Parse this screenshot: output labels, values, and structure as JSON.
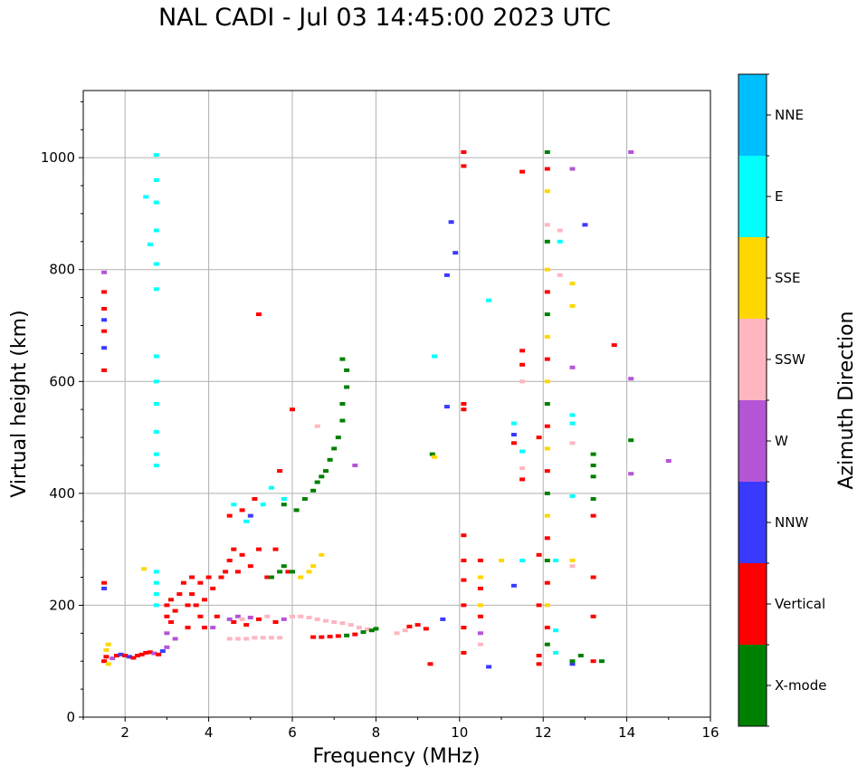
{
  "chart_data": {
    "type": "scatter",
    "title": "NAL CADI - Jul 03 14:45:00 2023 UTC",
    "xlabel": "Frequency (MHz)",
    "ylabel": "Virtual height (km)",
    "xlim": [
      1,
      16
    ],
    "ylim": [
      0,
      1120
    ],
    "xticks": [
      2,
      4,
      6,
      8,
      10,
      12,
      14,
      16
    ],
    "yticks": [
      0,
      200,
      400,
      600,
      800,
      1000
    ],
    "grid": true,
    "colorbar": {
      "label": "Azimuth Direction",
      "categories": [
        {
          "name": "X-mode",
          "color": "#008000"
        },
        {
          "name": "Vertical",
          "color": "#ff0000"
        },
        {
          "name": "NNW",
          "color": "#3a3aff"
        },
        {
          "name": "W",
          "color": "#b555d6"
        },
        {
          "name": "SSW",
          "color": "#ffb6c1"
        },
        {
          "name": "SSE",
          "color": "#ffd700"
        },
        {
          "name": "E",
          "color": "#00ffff"
        },
        {
          "name": "NNE",
          "color": "#00bfff"
        }
      ]
    },
    "points": [
      [
        1.5,
        100,
        "Vertical"
      ],
      [
        1.55,
        108,
        "Vertical"
      ],
      [
        1.6,
        95,
        "SSE"
      ],
      [
        1.55,
        120,
        "SSE"
      ],
      [
        1.6,
        130,
        "SSE"
      ],
      [
        1.7,
        105,
        "W"
      ],
      [
        1.8,
        110,
        "Vertical"
      ],
      [
        1.9,
        112,
        "NNW"
      ],
      [
        2.0,
        110,
        "Vertical"
      ],
      [
        2.1,
        108,
        "NNW"
      ],
      [
        2.2,
        106,
        "Vertical"
      ],
      [
        2.3,
        110,
        "Vertical"
      ],
      [
        2.4,
        112,
        "Vertical"
      ],
      [
        2.5,
        115,
        "Vertical"
      ],
      [
        2.6,
        116,
        "Vertical"
      ],
      [
        2.7,
        114,
        "W"
      ],
      [
        2.8,
        112,
        "Vertical"
      ],
      [
        2.9,
        118,
        "NNW"
      ],
      [
        3.0,
        125,
        "W"
      ],
      [
        1.5,
        230,
        "NNW"
      ],
      [
        1.5,
        240,
        "Vertical"
      ],
      [
        1.5,
        620,
        "Vertical"
      ],
      [
        1.5,
        660,
        "NNW"
      ],
      [
        1.5,
        690,
        "Vertical"
      ],
      [
        1.5,
        710,
        "NNW"
      ],
      [
        1.5,
        730,
        "Vertical"
      ],
      [
        1.5,
        760,
        "Vertical"
      ],
      [
        1.5,
        795,
        "W"
      ],
      [
        2.45,
        265,
        "SSE"
      ],
      [
        2.5,
        930,
        "E"
      ],
      [
        2.6,
        845,
        "E"
      ],
      [
        2.75,
        1005,
        "E"
      ],
      [
        2.75,
        960,
        "E"
      ],
      [
        2.75,
        920,
        "E"
      ],
      [
        2.75,
        870,
        "E"
      ],
      [
        2.75,
        810,
        "E"
      ],
      [
        2.75,
        765,
        "E"
      ],
      [
        2.75,
        645,
        "E"
      ],
      [
        2.75,
        600,
        "E"
      ],
      [
        2.75,
        560,
        "E"
      ],
      [
        2.75,
        510,
        "E"
      ],
      [
        2.75,
        470,
        "E"
      ],
      [
        2.75,
        450,
        "E"
      ],
      [
        2.75,
        260,
        "E"
      ],
      [
        2.75,
        240,
        "E"
      ],
      [
        2.75,
        220,
        "E"
      ],
      [
        2.75,
        200,
        "E"
      ],
      [
        3.0,
        150,
        "W"
      ],
      [
        3.0,
        180,
        "Vertical"
      ],
      [
        3.0,
        200,
        "Vertical"
      ],
      [
        3.1,
        210,
        "Vertical"
      ],
      [
        3.1,
        170,
        "Vertical"
      ],
      [
        3.2,
        140,
        "W"
      ],
      [
        3.2,
        190,
        "Vertical"
      ],
      [
        3.3,
        220,
        "Vertical"
      ],
      [
        3.4,
        240,
        "Vertical"
      ],
      [
        3.5,
        200,
        "Vertical"
      ],
      [
        3.5,
        160,
        "Vertical"
      ],
      [
        3.6,
        220,
        "Vertical"
      ],
      [
        3.6,
        250,
        "Vertical"
      ],
      [
        3.7,
        200,
        "Vertical"
      ],
      [
        3.8,
        240,
        "Vertical"
      ],
      [
        3.8,
        180,
        "Vertical"
      ],
      [
        3.9,
        210,
        "Vertical"
      ],
      [
        3.9,
        160,
        "Vertical"
      ],
      [
        4.0,
        250,
        "Vertical"
      ],
      [
        4.1,
        230,
        "Vertical"
      ],
      [
        4.1,
        160,
        "W"
      ],
      [
        4.2,
        180,
        "Vertical"
      ],
      [
        4.3,
        250,
        "Vertical"
      ],
      [
        4.4,
        260,
        "Vertical"
      ],
      [
        4.5,
        280,
        "Vertical"
      ],
      [
        4.5,
        360,
        "Vertical"
      ],
      [
        4.6,
        380,
        "E"
      ],
      [
        4.6,
        300,
        "Vertical"
      ],
      [
        4.7,
        260,
        "Vertical"
      ],
      [
        4.8,
        370,
        "Vertical"
      ],
      [
        4.8,
        290,
        "Vertical"
      ],
      [
        4.9,
        350,
        "E"
      ],
      [
        5.0,
        360,
        "NNW"
      ],
      [
        5.0,
        270,
        "Vertical"
      ],
      [
        5.1,
        390,
        "Vertical"
      ],
      [
        5.2,
        300,
        "Vertical"
      ],
      [
        5.3,
        380,
        "E"
      ],
      [
        5.4,
        250,
        "Vertical"
      ],
      [
        5.5,
        410,
        "E"
      ],
      [
        5.6,
        300,
        "Vertical"
      ],
      [
        5.7,
        440,
        "Vertical"
      ],
      [
        5.8,
        390,
        "E"
      ],
      [
        5.9,
        260,
        "Vertical"
      ],
      [
        4.5,
        175,
        "W"
      ],
      [
        4.6,
        170,
        "Vertical"
      ],
      [
        4.7,
        180,
        "W"
      ],
      [
        4.8,
        175,
        "SSW"
      ],
      [
        4.9,
        165,
        "Vertical"
      ],
      [
        5.0,
        178,
        "W"
      ],
      [
        5.2,
        175,
        "Vertical"
      ],
      [
        5.4,
        180,
        "SSW"
      ],
      [
        5.6,
        170,
        "Vertical"
      ],
      [
        5.8,
        175,
        "W"
      ],
      [
        6.0,
        180,
        "SSW"
      ],
      [
        6.2,
        180,
        "SSW"
      ],
      [
        6.4,
        178,
        "SSW"
      ],
      [
        6.6,
        175,
        "SSW"
      ],
      [
        6.8,
        172,
        "SSW"
      ],
      [
        7.0,
        170,
        "SSW"
      ],
      [
        7.2,
        168,
        "SSW"
      ],
      [
        7.4,
        165,
        "SSW"
      ],
      [
        7.6,
        160,
        "SSW"
      ],
      [
        7.8,
        157,
        "SSW"
      ],
      [
        4.5,
        140,
        "SSW"
      ],
      [
        4.7,
        140,
        "SSW"
      ],
      [
        4.9,
        140,
        "SSW"
      ],
      [
        5.1,
        142,
        "SSW"
      ],
      [
        5.3,
        142,
        "SSW"
      ],
      [
        5.5,
        142,
        "SSW"
      ],
      [
        5.7,
        142,
        "SSW"
      ],
      [
        6.5,
        143,
        "Vertical"
      ],
      [
        6.7,
        143,
        "Vertical"
      ],
      [
        6.9,
        144,
        "Vertical"
      ],
      [
        7.1,
        145,
        "Vertical"
      ],
      [
        7.3,
        146,
        "X-mode"
      ],
      [
        7.5,
        148,
        "Vertical"
      ],
      [
        7.7,
        152,
        "X-mode"
      ],
      [
        7.9,
        155,
        "X-mode"
      ],
      [
        8.0,
        158,
        "X-mode"
      ],
      [
        8.5,
        150,
        "SSW"
      ],
      [
        8.7,
        155,
        "SSW"
      ],
      [
        8.8,
        162,
        "Vertical"
      ],
      [
        9.0,
        165,
        "Vertical"
      ],
      [
        9.2,
        158,
        "Vertical"
      ],
      [
        5.5,
        250,
        "X-mode"
      ],
      [
        5.7,
        260,
        "X-mode"
      ],
      [
        5.8,
        270,
        "X-mode"
      ],
      [
        6.0,
        260,
        "X-mode"
      ],
      [
        6.2,
        250,
        "SSE"
      ],
      [
        6.4,
        260,
        "SSE"
      ],
      [
        6.5,
        270,
        "SSE"
      ],
      [
        6.7,
        290,
        "SSE"
      ],
      [
        5.2,
        720,
        "Vertical"
      ],
      [
        5.8,
        380,
        "X-mode"
      ],
      [
        6.1,
        370,
        "X-mode"
      ],
      [
        6.3,
        390,
        "X-mode"
      ],
      [
        6.5,
        405,
        "X-mode"
      ],
      [
        6.6,
        420,
        "X-mode"
      ],
      [
        6.7,
        430,
        "X-mode"
      ],
      [
        6.8,
        440,
        "X-mode"
      ],
      [
        6.9,
        460,
        "X-mode"
      ],
      [
        7.0,
        480,
        "X-mode"
      ],
      [
        7.1,
        500,
        "X-mode"
      ],
      [
        7.2,
        530,
        "X-mode"
      ],
      [
        7.2,
        560,
        "X-mode"
      ],
      [
        7.3,
        590,
        "X-mode"
      ],
      [
        7.3,
        620,
        "X-mode"
      ],
      [
        7.2,
        640,
        "X-mode"
      ],
      [
        6.0,
        550,
        "Vertical"
      ],
      [
        6.6,
        520,
        "SSW"
      ],
      [
        7.5,
        450,
        "W"
      ],
      [
        9.3,
        95,
        "Vertical"
      ],
      [
        9.35,
        470,
        "X-mode"
      ],
      [
        9.4,
        465,
        "SSE"
      ],
      [
        9.4,
        645,
        "E"
      ],
      [
        9.7,
        790,
        "NNW"
      ],
      [
        9.7,
        555,
        "NNW"
      ],
      [
        9.8,
        885,
        "NNW"
      ],
      [
        9.9,
        830,
        "NNW"
      ],
      [
        9.6,
        175,
        "NNW"
      ],
      [
        10.1,
        1010,
        "Vertical"
      ],
      [
        10.1,
        985,
        "Vertical"
      ],
      [
        10.1,
        560,
        "Vertical"
      ],
      [
        10.1,
        550,
        "Vertical"
      ],
      [
        10.1,
        325,
        "Vertical"
      ],
      [
        10.1,
        280,
        "Vertical"
      ],
      [
        10.1,
        245,
        "Vertical"
      ],
      [
        10.1,
        200,
        "Vertical"
      ],
      [
        10.1,
        160,
        "Vertical"
      ],
      [
        10.1,
        115,
        "Vertical"
      ],
      [
        10.5,
        280,
        "Vertical"
      ],
      [
        10.5,
        250,
        "SSE"
      ],
      [
        10.5,
        230,
        "Vertical"
      ],
      [
        10.5,
        200,
        "SSE"
      ],
      [
        10.5,
        180,
        "Vertical"
      ],
      [
        10.5,
        150,
        "W"
      ],
      [
        10.5,
        130,
        "SSW"
      ],
      [
        10.7,
        90,
        "NNW"
      ],
      [
        10.7,
        745,
        "E"
      ],
      [
        11.0,
        280,
        "SSE"
      ],
      [
        11.3,
        525,
        "E"
      ],
      [
        11.3,
        505,
        "NNW"
      ],
      [
        11.3,
        490,
        "Vertical"
      ],
      [
        11.3,
        235,
        "NNW"
      ],
      [
        11.5,
        975,
        "Vertical"
      ],
      [
        11.5,
        655,
        "Vertical"
      ],
      [
        11.5,
        630,
        "Vertical"
      ],
      [
        11.5,
        600,
        "SSW"
      ],
      [
        11.5,
        475,
        "E"
      ],
      [
        11.5,
        445,
        "SSW"
      ],
      [
        11.5,
        425,
        "Vertical"
      ],
      [
        11.5,
        280,
        "E"
      ],
      [
        11.9,
        500,
        "Vertical"
      ],
      [
        11.9,
        290,
        "Vertical"
      ],
      [
        11.9,
        200,
        "Vertical"
      ],
      [
        11.9,
        110,
        "Vertical"
      ],
      [
        11.9,
        95,
        "Vertical"
      ],
      [
        12.1,
        1010,
        "X-mode"
      ],
      [
        12.1,
        980,
        "Vertical"
      ],
      [
        12.1,
        940,
        "SSE"
      ],
      [
        12.1,
        880,
        "SSW"
      ],
      [
        12.1,
        850,
        "X-mode"
      ],
      [
        12.1,
        800,
        "SSE"
      ],
      [
        12.1,
        760,
        "Vertical"
      ],
      [
        12.1,
        720,
        "X-mode"
      ],
      [
        12.1,
        680,
        "SSE"
      ],
      [
        12.1,
        640,
        "Vertical"
      ],
      [
        12.1,
        600,
        "SSE"
      ],
      [
        12.1,
        560,
        "X-mode"
      ],
      [
        12.1,
        520,
        "Vertical"
      ],
      [
        12.1,
        480,
        "SSE"
      ],
      [
        12.1,
        440,
        "Vertical"
      ],
      [
        12.1,
        400,
        "X-mode"
      ],
      [
        12.1,
        360,
        "SSE"
      ],
      [
        12.1,
        320,
        "Vertical"
      ],
      [
        12.1,
        280,
        "X-mode"
      ],
      [
        12.1,
        240,
        "Vertical"
      ],
      [
        12.1,
        200,
        "SSE"
      ],
      [
        12.1,
        160,
        "Vertical"
      ],
      [
        12.1,
        130,
        "X-mode"
      ],
      [
        12.4,
        870,
        "SSW"
      ],
      [
        12.4,
        790,
        "SSW"
      ],
      [
        12.4,
        850,
        "E"
      ],
      [
        12.3,
        280,
        "E"
      ],
      [
        12.3,
        155,
        "E"
      ],
      [
        12.3,
        115,
        "E"
      ],
      [
        12.7,
        980,
        "W"
      ],
      [
        12.7,
        775,
        "SSE"
      ],
      [
        12.7,
        735,
        "SSE"
      ],
      [
        12.7,
        625,
        "W"
      ],
      [
        12.7,
        540,
        "E"
      ],
      [
        12.7,
        525,
        "E"
      ],
      [
        12.7,
        490,
        "SSW"
      ],
      [
        12.7,
        395,
        "E"
      ],
      [
        12.7,
        280,
        "SSE"
      ],
      [
        12.7,
        270,
        "SSW"
      ],
      [
        12.7,
        95,
        "NNW"
      ],
      [
        12.7,
        100,
        "X-mode"
      ],
      [
        12.9,
        110,
        "X-mode"
      ],
      [
        13.0,
        880,
        "NNW"
      ],
      [
        13.2,
        470,
        "X-mode"
      ],
      [
        13.2,
        450,
        "X-mode"
      ],
      [
        13.2,
        430,
        "X-mode"
      ],
      [
        13.2,
        390,
        "X-mode"
      ],
      [
        13.2,
        360,
        "Vertical"
      ],
      [
        13.2,
        250,
        "Vertical"
      ],
      [
        13.2,
        180,
        "Vertical"
      ],
      [
        13.2,
        100,
        "Vertical"
      ],
      [
        13.4,
        100,
        "X-mode"
      ],
      [
        13.7,
        665,
        "Vertical"
      ],
      [
        14.1,
        1010,
        "W"
      ],
      [
        14.1,
        605,
        "W"
      ],
      [
        14.1,
        495,
        "X-mode"
      ],
      [
        14.1,
        435,
        "W"
      ],
      [
        15.0,
        458,
        "W"
      ]
    ]
  }
}
